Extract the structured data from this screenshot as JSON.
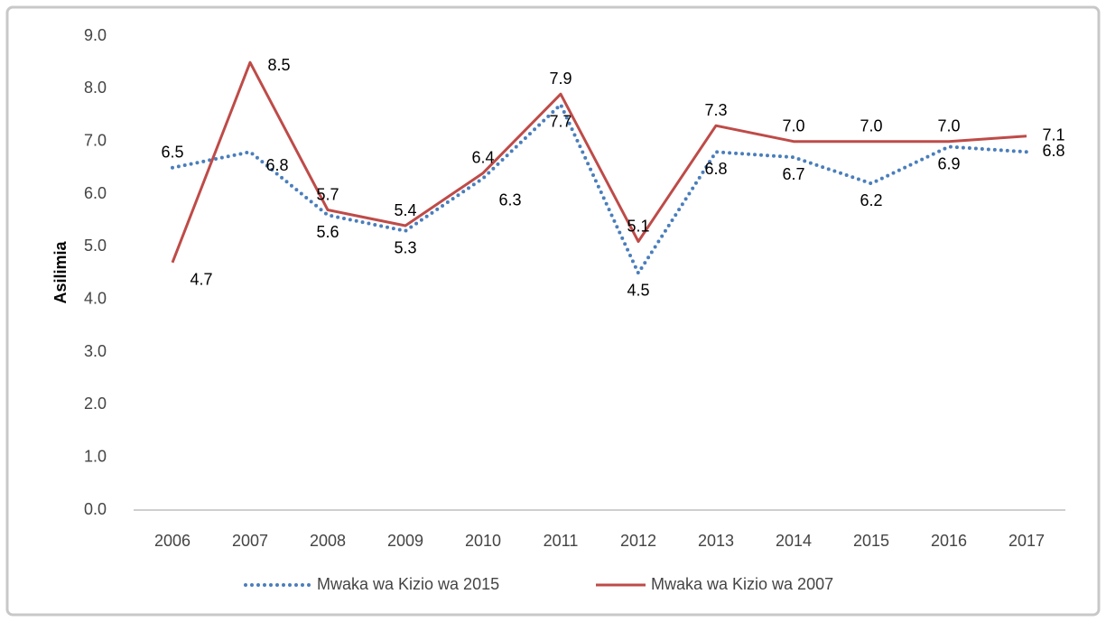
{
  "chart_data": {
    "type": "line",
    "ylabel": "Asilimia",
    "categories": [
      "2006",
      "2007",
      "2008",
      "2009",
      "2010",
      "2011",
      "2012",
      "2013",
      "2014",
      "2015",
      "2016",
      "2017"
    ],
    "series": [
      {
        "name": "Mwaka wa Kizio wa 2015",
        "color": "#4a7ebb",
        "style": "dotted",
        "values": [
          6.5,
          6.8,
          5.6,
          5.3,
          6.3,
          7.7,
          4.5,
          6.8,
          6.7,
          6.2,
          6.9,
          6.8
        ]
      },
      {
        "name": "Mwaka wa Kizio wa 2007",
        "color": "#be4b48",
        "style": "solid",
        "values": [
          4.7,
          8.5,
          5.7,
          5.4,
          6.4,
          7.9,
          5.1,
          7.3,
          7.0,
          7.0,
          7.0,
          7.1
        ],
        "value_labels": [
          "4.7",
          "8.5",
          "5.7",
          "5.4",
          "6.4",
          "7.9",
          "5.1",
          "7.3",
          "7.0",
          "7.0",
          "7.0",
          "7.1"
        ]
      }
    ],
    "ylim": [
      0,
      9
    ],
    "yticks": [
      {
        "value": 0,
        "label": "0.0"
      },
      {
        "value": 1,
        "label": "1.0"
      },
      {
        "value": 2,
        "label": "2.0"
      },
      {
        "value": 3,
        "label": "3.0"
      },
      {
        "value": 4,
        "label": "4.0"
      },
      {
        "value": 5,
        "label": "5.0"
      },
      {
        "value": 6,
        "label": "6.0"
      },
      {
        "value": 7,
        "label": "7.0"
      },
      {
        "value": 8,
        "label": "8.0"
      },
      {
        "value": 9,
        "label": "9.0"
      }
    ],
    "grid": false,
    "legend": "bottom"
  }
}
